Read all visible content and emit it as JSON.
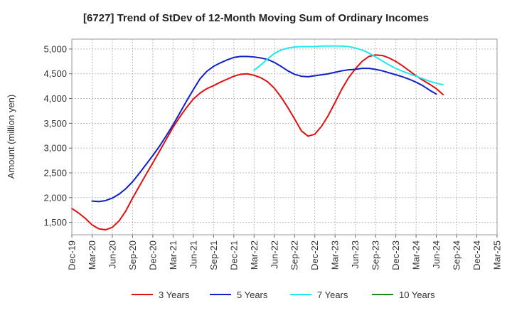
{
  "chart_data": {
    "type": "line",
    "title": "[6727]  Trend of StDev of 12-Month Moving Sum of Ordinary Incomes",
    "xlabel": "",
    "ylabel": "Amount (million yen)",
    "ylim": [
      1250,
      5200
    ],
    "yticks": [
      1500,
      2000,
      2500,
      3000,
      3500,
      4000,
      4500,
      5000
    ],
    "ytick_labels": [
      "1,500",
      "2,000",
      "2,500",
      "3,000",
      "3,500",
      "4,000",
      "4,500",
      "5,000"
    ],
    "x_categories": [
      "Dec-19",
      "Mar-20",
      "Jun-20",
      "Sep-20",
      "Dec-20",
      "Mar-21",
      "Jun-21",
      "Sep-21",
      "Dec-21",
      "Mar-22",
      "Jun-22",
      "Sep-22",
      "Dec-22",
      "Mar-23",
      "Jun-23",
      "Sep-23",
      "Dec-23",
      "Mar-24",
      "Jun-24",
      "Sep-24",
      "Dec-24",
      "Mar-25"
    ],
    "grid": true,
    "legend_position": "bottom",
    "series": [
      {
        "name": "3 Years",
        "color": "#e01010",
        "start": "Dec-19",
        "values": [
          1780,
          1690,
          1580,
          1450,
          1370,
          1350,
          1400,
          1530,
          1730,
          1990,
          2230,
          2470,
          2700,
          2940,
          3180,
          3420,
          3630,
          3820,
          3990,
          4110,
          4200,
          4260,
          4330,
          4390,
          4450,
          4490,
          4500,
          4470,
          4420,
          4340,
          4210,
          4030,
          3820,
          3590,
          3350,
          3240,
          3280,
          3440,
          3660,
          3920,
          4190,
          4420,
          4600,
          4750,
          4850,
          4880,
          4870,
          4820,
          4750,
          4660,
          4560,
          4460,
          4370,
          4290,
          4200,
          4080
        ]
      },
      {
        "name": "5 Years",
        "color": "#1020c8",
        "start": "Mar-20",
        "values": [
          1930,
          1920,
          1940,
          1990,
          2070,
          2180,
          2320,
          2490,
          2670,
          2850,
          3040,
          3250,
          3470,
          3710,
          3950,
          4180,
          4400,
          4550,
          4650,
          4720,
          4780,
          4830,
          4850,
          4850,
          4840,
          4820,
          4790,
          4730,
          4650,
          4560,
          4490,
          4450,
          4440,
          4460,
          4480,
          4500,
          4530,
          4560,
          4580,
          4590,
          4610,
          4610,
          4590,
          4560,
          4520,
          4480,
          4440,
          4390,
          4330,
          4260,
          4170,
          4090
        ]
      },
      {
        "name": "7 Years",
        "color": "#20e8f0",
        "start": "Mar-22",
        "values": [
          4570,
          4680,
          4800,
          4910,
          4980,
          5020,
          5040,
          5050,
          5050,
          5050,
          5060,
          5060,
          5060,
          5060,
          5050,
          5020,
          4980,
          4920,
          4840,
          4760,
          4680,
          4610,
          4550,
          4500,
          4450,
          4400,
          4350,
          4310,
          4280
        ]
      },
      {
        "name": "10 Years",
        "color": "#1a8a1a",
        "start": "Dec-24",
        "values": []
      }
    ]
  }
}
